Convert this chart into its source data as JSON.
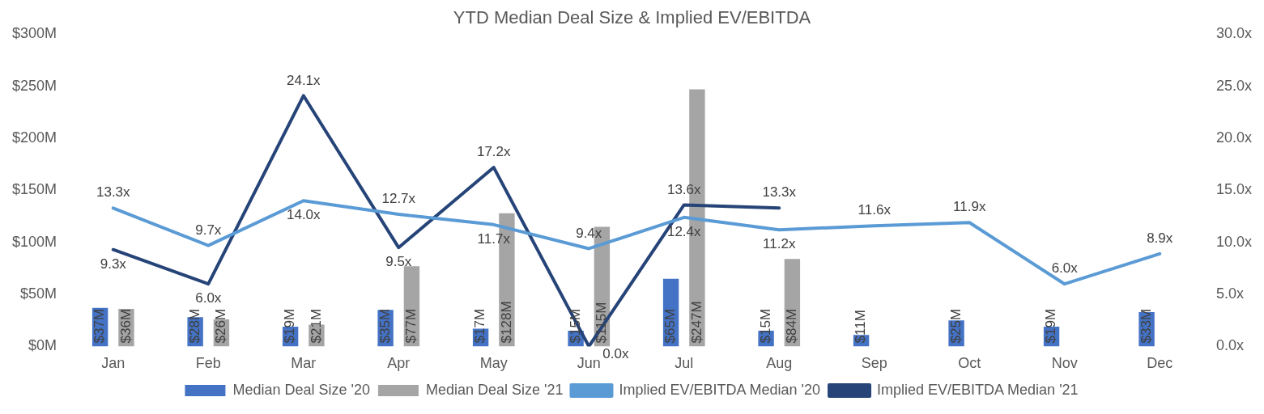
{
  "chart_data": {
    "type": "bar",
    "title": "YTD Median Deal Size & Implied EV/EBITDA",
    "categories": [
      "Jan",
      "Feb",
      "Mar",
      "Apr",
      "May",
      "Jun",
      "Jul",
      "Aug",
      "Sep",
      "Oct",
      "Nov",
      "Dec"
    ],
    "series": [
      {
        "name": "Median Deal Size '20",
        "color": "#4472c4",
        "values": [
          37,
          28,
          19,
          35,
          17,
          15,
          65,
          15,
          11,
          25,
          19,
          33
        ],
        "value_labels": [
          "$37M",
          "$28M",
          "$19M",
          "$35M",
          "$17M",
          "$15M",
          "$65M",
          "$15M",
          "$11M",
          "$25M",
          "$19M",
          "$33M"
        ]
      },
      {
        "name": "Median Deal Size '21",
        "color": "#a5a5a5",
        "values": [
          36,
          26,
          21,
          77,
          128,
          115,
          247,
          84,
          null,
          null,
          null,
          null
        ],
        "value_labels": [
          "$36M",
          "$26M",
          "$21M",
          "$77M",
          "$128M",
          "$115M",
          "$247M",
          "$84M",
          null,
          null,
          null,
          null
        ]
      },
      {
        "name": "Implied EV/EBITDA Median '20",
        "type": "line",
        "axis": "y2",
        "color": "#5b9bd5",
        "values": [
          13.3,
          9.7,
          14.0,
          12.7,
          11.7,
          9.4,
          12.4,
          11.2,
          11.6,
          11.9,
          6.0,
          8.9
        ],
        "value_labels": [
          "13.3x",
          "9.7x",
          "14.0x",
          "12.7x",
          "11.7x",
          "9.4x",
          "12.4x",
          "11.2x",
          "11.6x",
          "11.9x",
          "6.0x",
          "8.9x"
        ]
      },
      {
        "name": "Implied EV/EBITDA Median '21",
        "type": "line",
        "axis": "y2",
        "color": "#264478",
        "values": [
          9.3,
          6.0,
          24.1,
          9.5,
          17.2,
          0.0,
          13.6,
          13.3,
          null,
          null,
          null,
          null
        ],
        "value_labels": [
          "9.3x",
          "6.0x",
          "24.1x",
          "9.5x",
          "17.2x",
          "0.0x",
          "13.6x",
          "13.3x",
          null,
          null,
          null,
          null
        ]
      }
    ],
    "ylim": [
      0,
      300
    ],
    "yticks": [
      {
        "value": 0,
        "label": "$0M"
      },
      {
        "value": 50,
        "label": "$50M"
      },
      {
        "value": 100,
        "label": "$100M"
      },
      {
        "value": 150,
        "label": "$150M"
      },
      {
        "value": 200,
        "label": "$200M"
      },
      {
        "value": 250,
        "label": "$250M"
      },
      {
        "value": 300,
        "label": "$300M"
      }
    ],
    "y2lim": [
      0,
      30
    ],
    "y2ticks": [
      {
        "value": 0,
        "label": "0.0x"
      },
      {
        "value": 5,
        "label": "5.0x"
      },
      {
        "value": 10,
        "label": "10.0x"
      },
      {
        "value": 15,
        "label": "15.0x"
      },
      {
        "value": 20,
        "label": "20.0x"
      },
      {
        "value": 25,
        "label": "25.0x"
      },
      {
        "value": 30,
        "label": "30.0x"
      }
    ],
    "grid": false,
    "legend": "bottom",
    "marker": "none",
    "line_style": "solid"
  }
}
